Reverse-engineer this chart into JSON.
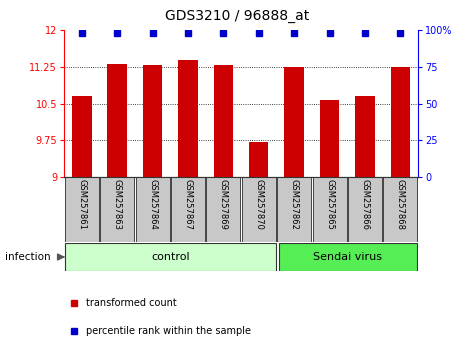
{
  "title": "GDS3210 / 96888_at",
  "samples": [
    "GSM257861",
    "GSM257863",
    "GSM257864",
    "GSM257867",
    "GSM257869",
    "GSM257870",
    "GSM257862",
    "GSM257865",
    "GSM257866",
    "GSM257868"
  ],
  "bar_values": [
    10.65,
    11.3,
    11.28,
    11.38,
    11.28,
    9.72,
    11.25,
    10.57,
    10.65,
    11.25
  ],
  "bar_color": "#CC0000",
  "dot_color": "#0000CC",
  "ylim_left": [
    9.0,
    12.0
  ],
  "ylim_right": [
    0,
    100
  ],
  "yticks_left": [
    9.0,
    9.75,
    10.5,
    11.25,
    12.0
  ],
  "yticks_right": [
    0,
    25,
    50,
    75,
    100
  ],
  "ytick_labels_left": [
    "9",
    "9.75",
    "10.5",
    "11.25",
    "12"
  ],
  "ytick_labels_right": [
    "0",
    "25",
    "50",
    "75",
    "100%"
  ],
  "gridlines_at": [
    9.75,
    10.5,
    11.25
  ],
  "n_control": 6,
  "n_virus": 4,
  "control_label": "control",
  "virus_label": "Sendai virus",
  "infection_label": "infection",
  "control_color": "#CCFFCC",
  "virus_color": "#55EE55",
  "legend_red_label": "transformed count",
  "legend_blue_label": "percentile rank within the sample",
  "sample_box_color": "#C8C8C8",
  "sample_box_edge": "#444444",
  "title_fontsize": 10,
  "tick_fontsize": 7,
  "sample_fontsize": 6,
  "group_fontsize": 8,
  "legend_fontsize": 7,
  "infection_fontsize": 7.5
}
